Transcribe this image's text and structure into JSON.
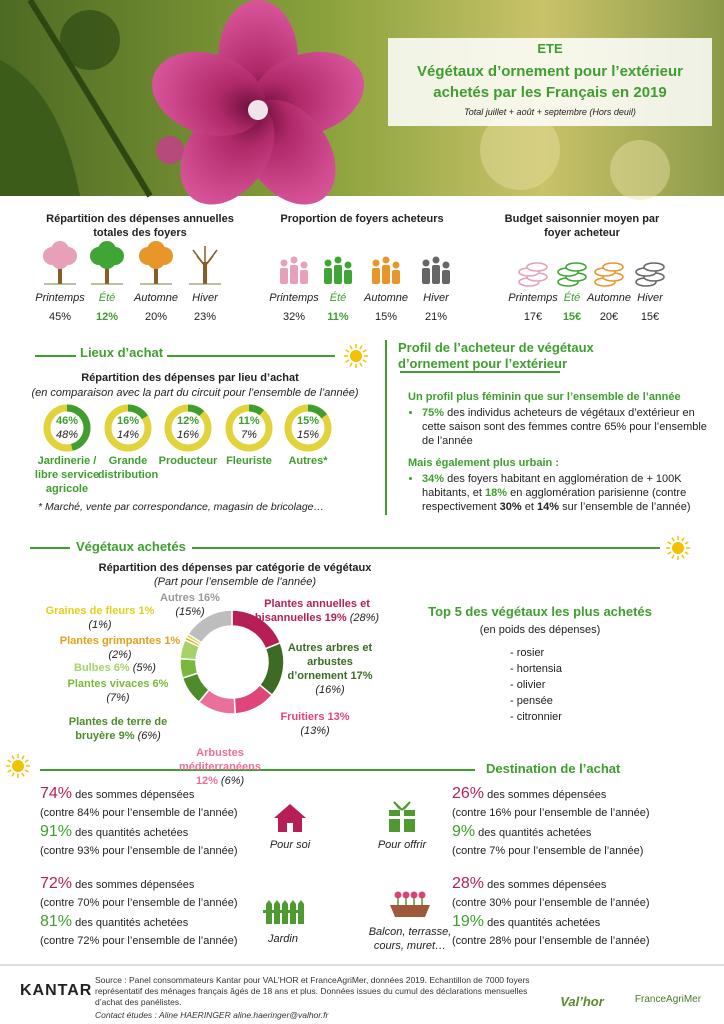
{
  "header": {
    "season": "ETE",
    "title_lines": [
      "Végétaux d’ornement pour l’extérieur",
      "achetés par les Français en 2019"
    ],
    "note": "Total juillet + août + septembre (Hors deuil)"
  },
  "stats": [
    {
      "title": "Répartition des dépenses annuelles totales des foyers",
      "items": [
        {
          "season": "Printemps",
          "value": "45%"
        },
        {
          "season": "Été",
          "value": "12%"
        },
        {
          "season": "Automne",
          "value": "20%"
        },
        {
          "season": "Hiver",
          "value": "23%"
        }
      ]
    },
    {
      "title": "Proportion de foyers acheteurs",
      "items": [
        {
          "season": "Printemps",
          "value": "32%"
        },
        {
          "season": "Été",
          "value": "11%"
        },
        {
          "season": "Automne",
          "value": "15%"
        },
        {
          "season": "Hiver",
          "value": "21%"
        }
      ]
    },
    {
      "title": "Budget saisonnier moyen par foyer acheteur",
      "items": [
        {
          "season": "Printemps",
          "value": "17€"
        },
        {
          "season": "Été",
          "value": "15€"
        },
        {
          "season": "Automne",
          "value": "20€"
        },
        {
          "season": "Hiver",
          "value": "15€"
        }
      ]
    }
  ],
  "lieux": {
    "title": "Lieux d’achat",
    "subtitle": "Répartition des dépenses par lieu d’achat",
    "note": "(en comparaison avec la part du circuit pour l’ensemble de l’année)",
    "items": [
      {
        "label": "Jardinerie / libre service agricole",
        "value": {
          "value": 46,
          "label": "46%"
        },
        "year": "48%"
      },
      {
        "label": "Grande distribution",
        "value": {
          "value": 16,
          "label": "16%"
        },
        "year": "14%"
      },
      {
        "label": "Producteur",
        "value": {
          "value": 12,
          "label": "12%"
        },
        "year": "16%"
      },
      {
        "label": "Fleuriste",
        "value": {
          "value": 11,
          "label": "11%"
        },
        "year": "7%"
      },
      {
        "label": "Autres*",
        "value": {
          "value": 15,
          "label": "15%"
        },
        "year": "15%"
      }
    ],
    "footnote": "* Marché, vente par correspondance, magasin de bricolage…"
  },
  "profil": {
    "title": "Profil de l’acheteur de végétaux d’ornement pour l’extérieur",
    "blocks": [
      {
        "heading": "Un profil plus féminin que sur l’ensemble de l’année",
        "runs": [
          "75%",
          " des individus acheteurs de végétaux d’extérieur en cette saison sont des femmes contre 65% pour l’ensemble de l’année"
        ]
      },
      {
        "heading": "Mais également plus urbain :",
        "runs": [
          "34%",
          " des foyers habitant en agglomération de + 100K habitants, et ",
          "18%",
          " en agglomération parisienne (contre respectivement ",
          "30%",
          " et ",
          "14%",
          " sur l’ensemble de l’année)"
        ]
      }
    ]
  },
  "vegetaux": {
    "title": "Végétaux achetés",
    "chart": {
      "type": "pie",
      "title": "Répartition des dépenses par catégorie de végétaux",
      "subtitle": "(Part pour l’ensemble de l’année)",
      "segments": [
        {
          "name": "Plantes annuelles et bisannuelles",
          "value": 19,
          "value_label": "19%",
          "year_label": "(28%)",
          "color": "#b51f55"
        },
        {
          "name": "Autres arbres et arbustes d’ornement",
          "value": 17,
          "value_label": "17%",
          "year_label": "(16%)",
          "color": "#3d6b25"
        },
        {
          "name": "Fruitiers",
          "value": 13,
          "value_label": "13%",
          "year_label": "(13%)",
          "color": "#e0457a"
        },
        {
          "name": "Arbustes méditerranéens",
          "value": 12,
          "value_label": "12%",
          "year_label": "(6%)",
          "color": "#e8709a"
        },
        {
          "name": "Plantes de terre de bruyère",
          "value": 9,
          "value_label": "9%",
          "year_label": "(6%)",
          "color": "#4f8a2b"
        },
        {
          "name": "Plantes vivaces",
          "value": 6,
          "value_label": "6%",
          "year_label": "(7%)",
          "color": "#78b83a"
        },
        {
          "name": "Bulbes",
          "value": 6,
          "value_label": "6%",
          "year_label": "(5%)",
          "color": "#a6d26a"
        },
        {
          "name": "Plantes grimpantes",
          "value": 1,
          "value_label": "1%",
          "year_label": "(2%)",
          "color": "#e0a020"
        },
        {
          "name": "Graines de fleurs",
          "value": 1,
          "value_label": "1%",
          "year_label": "(1%)",
          "color": "#e2cf1c"
        },
        {
          "name": "Autres",
          "value": 16,
          "value_label": "16%",
          "year_label": "(15%)",
          "color": "#bdbdbd"
        }
      ]
    }
  },
  "top5": {
    "title": "Top 5 des végétaux les plus achetés",
    "subtitle": "(en poids des dépenses)",
    "items": [
      "- rosier",
      "- hortensia",
      "- olivier",
      "- pensée",
      "- citronnier"
    ]
  },
  "destination": {
    "title": "Destination de l’achat",
    "blocks": [
      {
        "icon_label": "Pour soi",
        "lines": [
          {
            "pct": "74%",
            "text": " des sommes dépensées",
            "note": "(contre 84% pour l’ensemble de l’année)"
          },
          {
            "pct": "91%",
            "text": " des quantités achetées",
            "note": "(contre 93% pour l’ensemble de l’année)"
          }
        ]
      },
      {
        "icon_label": "Pour offrir",
        "lines": [
          {
            "pct": "26%",
            "text": " des sommes dépensées",
            "note": "(contre 16% pour l’ensemble de l’année)"
          },
          {
            "pct": "9%",
            "text": " des quantités achetées",
            "note": "(contre 7% pour l’ensemble de l’année)"
          }
        ]
      },
      {
        "icon_label": "Jardin",
        "lines": [
          {
            "pct": "72%",
            "text": " des sommes dépensées",
            "note": "(contre 70% pour l’ensemble de l’année)"
          },
          {
            "pct": "81%",
            "text": " des quantités achetées",
            "note": "(contre 72% pour l’ensemble de l’année)"
          }
        ]
      },
      {
        "icon_label": "Balcon, terrasse, cours, muret…",
        "lines": [
          {
            "pct": "28%",
            "text": " des sommes dépensées",
            "note": "(contre 30% pour l’ensemble de l’année)"
          },
          {
            "pct": "19%",
            "text": " des quantités achetées",
            "note": "(contre 28% pour l’ensemble de l’année)"
          }
        ]
      }
    ]
  },
  "footer": {
    "brand": "KANTAR",
    "source": "Source : Panel consommateurs Kantar pour VAL’HOR et FranceAgriMer, données 2019. Echantillon de 7000 foyers représentatif des ménages français âgés de 18 ans et plus. Données issues du cumul des déclarations mensuelles d’achat des panélistes.",
    "contact": "Contact études : Aline HAERINGER aline.haeringer@valhor.fr",
    "logos": [
      "Val’hor",
      "FranceAgriMer"
    ]
  }
}
